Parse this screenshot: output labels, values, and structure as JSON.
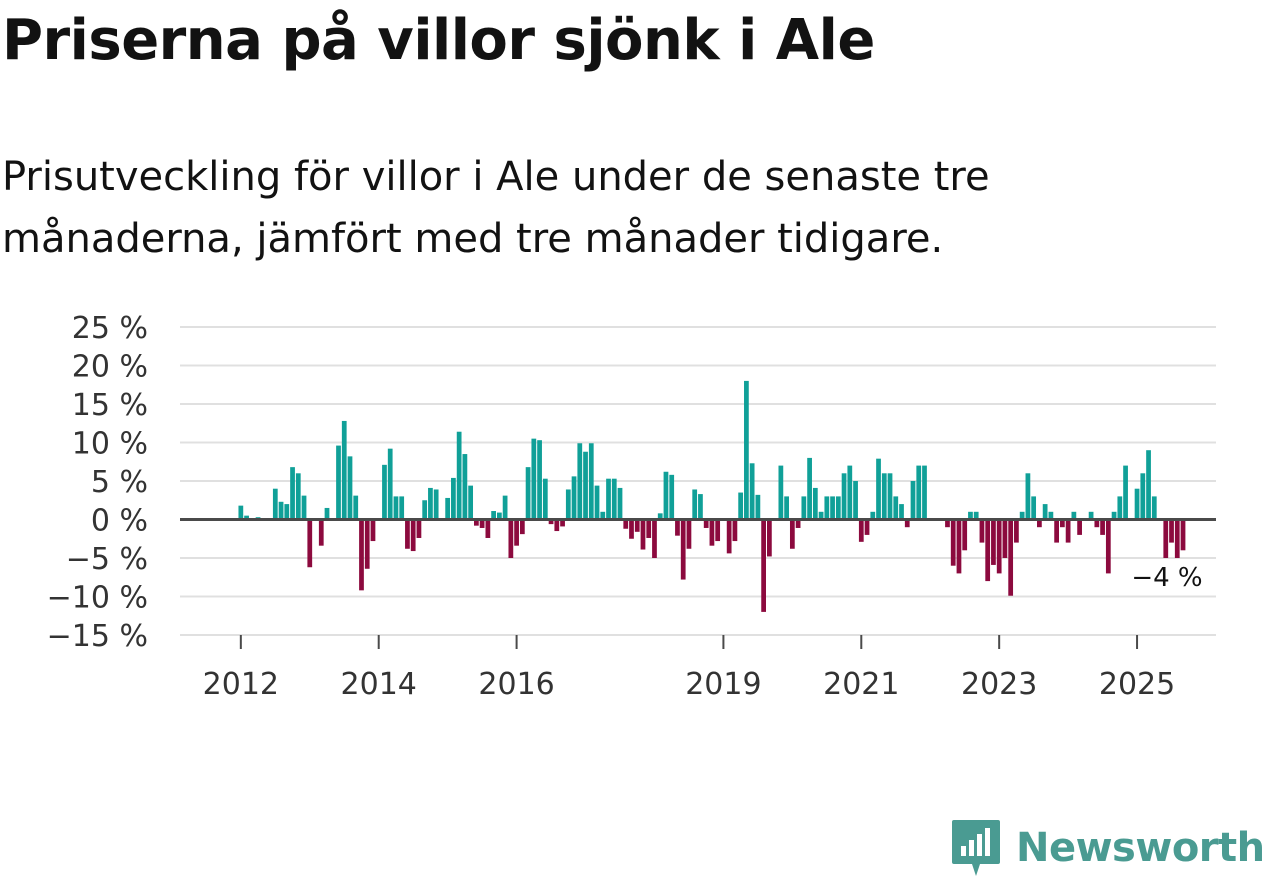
{
  "title": "Priserna på villor sjönk i Ale",
  "subtitle": "Prisutveckling för villor i Ale under de senaste tre månaderna, jämfört med tre månader tidigare.",
  "brand": "Newsworthy",
  "colors": {
    "positive": "#10a098",
    "negative": "#8c0a3e",
    "grid": "#e0e0e0",
    "zero": "#4a4a4a",
    "brand": "#4a9b92"
  },
  "chart_data": {
    "type": "bar",
    "title": "Priserna på villor sjönk i Ale",
    "ylabel": "",
    "xlabel": "",
    "ylim": [
      -15,
      25
    ],
    "y_ticks": [
      25,
      20,
      15,
      10,
      5,
      0,
      -5,
      -10,
      -15
    ],
    "y_tick_labels": [
      "25 %",
      "20 %",
      "15 %",
      "10 %",
      "5 %",
      "0 %",
      "−5 %",
      "−10 %",
      "−15 %"
    ],
    "x_ticks": [
      {
        "label": "2012",
        "index": 8
      },
      {
        "label": "2014",
        "index": 32
      },
      {
        "label": "2016",
        "index": 56
      },
      {
        "label": "2019",
        "index": 92
      },
      {
        "label": "2021",
        "index": 116
      },
      {
        "label": "2023",
        "index": 140
      },
      {
        "label": "2025",
        "index": 164
      }
    ],
    "start": "2011-01",
    "frequency": "monthly",
    "end_label": "−4 %",
    "values": [
      0,
      0,
      0,
      0,
      0,
      0,
      0,
      0,
      1.8,
      0.5,
      0,
      0.3,
      0,
      0,
      4,
      2.3,
      2,
      6.8,
      6,
      3.1,
      -6.2,
      0,
      -3.4,
      1.5,
      0,
      9.6,
      12.8,
      8.2,
      3.1,
      -9.2,
      -6.4,
      -2.8,
      0,
      7.1,
      9.2,
      3,
      3,
      -3.8,
      -4.1,
      -2.4,
      2.5,
      4.1,
      3.9,
      0,
      2.8,
      5.4,
      11.4,
      8.5,
      4.4,
      -0.8,
      -1.1,
      -2.4,
      1.1,
      0.9,
      3.1,
      -5,
      -3.4,
      -1.9,
      6.8,
      10.5,
      10.3,
      5.3,
      -0.6,
      -1.5,
      -0.9,
      3.9,
      5.6,
      9.9,
      8.8,
      9.9,
      4.4,
      1,
      5.3,
      5.3,
      4.1,
      -1.2,
      -2.5,
      -1.6,
      -3.9,
      -2.4,
      -5,
      0.8,
      6.2,
      5.8,
      -2.1,
      -7.8,
      -3.8,
      3.9,
      3.3,
      -1.1,
      -3.4,
      -2.8,
      0,
      -4.4,
      -2.8,
      3.5,
      18,
      7.3,
      3.2,
      -12,
      -4.8,
      0,
      7,
      3,
      -3.8,
      -1.1,
      3,
      8,
      4.1,
      1,
      3,
      3,
      3,
      6,
      7,
      5,
      -2.9,
      -2,
      1,
      7.9,
      6,
      6,
      3,
      2,
      -1,
      5,
      7,
      7,
      0,
      0,
      0,
      -1,
      -6,
      -7,
      -4,
      1,
      1,
      -3,
      -8,
      -5.9,
      -7,
      -5,
      -9.9,
      -3,
      1,
      6,
      3,
      -1,
      2,
      1,
      -3,
      -1,
      -3,
      1,
      -2,
      0,
      1,
      -1,
      -2,
      -7,
      1,
      3,
      7,
      0,
      4,
      6,
      9,
      3,
      0,
      -5,
      -3,
      -5,
      -4
    ]
  }
}
